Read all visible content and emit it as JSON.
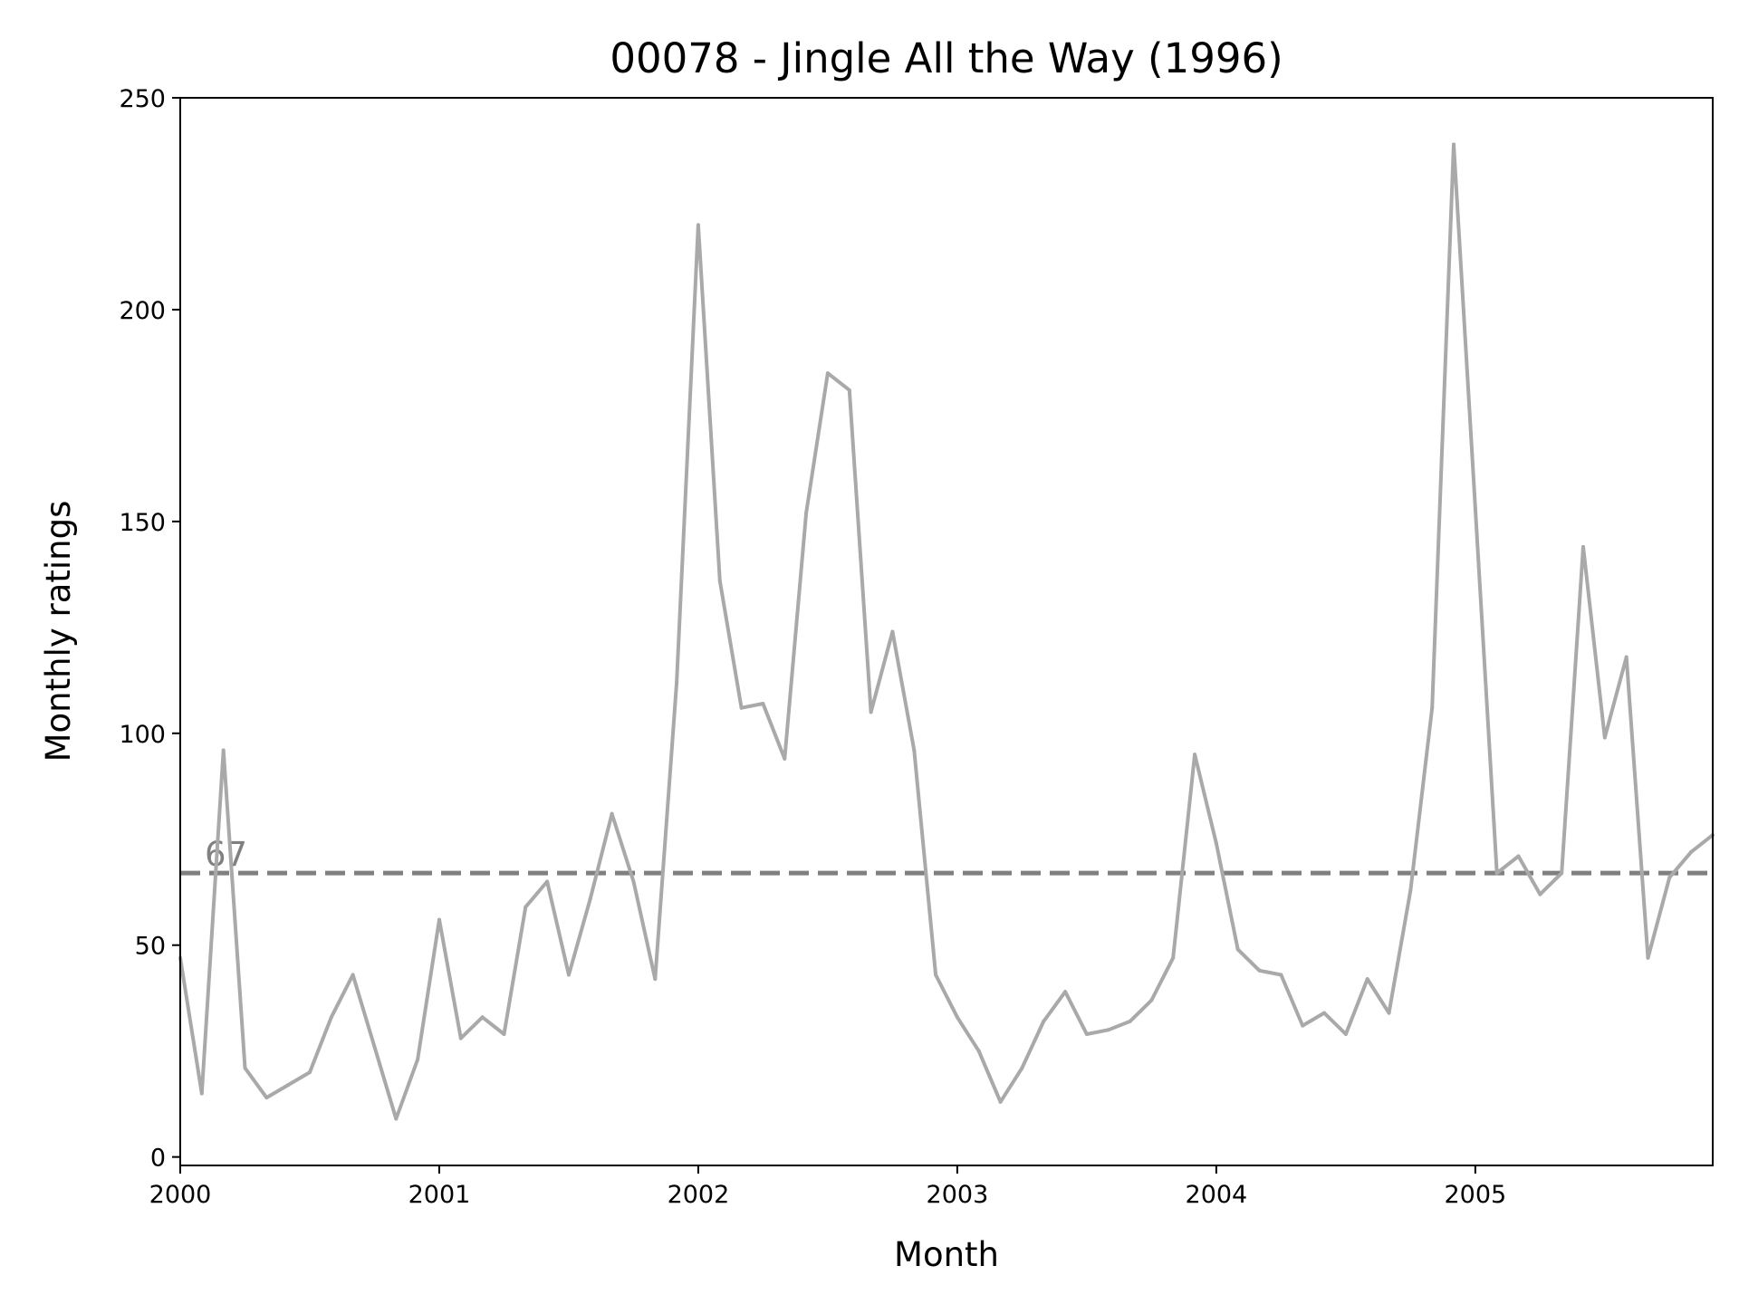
{
  "chart_data": {
    "type": "line",
    "title": "00078 - Jingle All the Way (1996)",
    "xlabel": "Month",
    "ylabel": "Monthly ratings",
    "x_tick_labels": [
      "2000",
      "2001",
      "2002",
      "2003",
      "2004",
      "2005"
    ],
    "y_ticks": [
      0,
      50,
      100,
      150,
      200,
      250
    ],
    "xlim": [
      "2000-01",
      "2005-12"
    ],
    "ylim": [
      -2,
      250
    ],
    "grid": false,
    "legend": "none",
    "series": [
      {
        "color": "#a9a9a9",
        "x": [
          "2000-01",
          "2000-02",
          "2000-03",
          "2000-04",
          "2000-05",
          "2000-06",
          "2000-07",
          "2000-08",
          "2000-09",
          "2000-10",
          "2000-11",
          "2000-12",
          "2001-01",
          "2001-02",
          "2001-03",
          "2001-04",
          "2001-05",
          "2001-06",
          "2001-07",
          "2001-08",
          "2001-09",
          "2001-10",
          "2001-11",
          "2001-12",
          "2002-01",
          "2002-02",
          "2002-03",
          "2002-04",
          "2002-05",
          "2002-06",
          "2002-07",
          "2002-08",
          "2002-09",
          "2002-10",
          "2002-11",
          "2002-12",
          "2003-01",
          "2003-02",
          "2003-03",
          "2003-04",
          "2003-05",
          "2003-06",
          "2003-07",
          "2003-08",
          "2003-09",
          "2003-10",
          "2003-11",
          "2003-12",
          "2004-01",
          "2004-02",
          "2004-03",
          "2004-04",
          "2004-05",
          "2004-06",
          "2004-07",
          "2004-08",
          "2004-09",
          "2004-10",
          "2004-11",
          "2004-12",
          "2005-01",
          "2005-02",
          "2005-03",
          "2005-04",
          "2005-05",
          "2005-06",
          "2005-07",
          "2005-08",
          "2005-09",
          "2005-10",
          "2005-11",
          "2005-12"
        ],
        "values": [
          47,
          15,
          96,
          21,
          14,
          17,
          20,
          33,
          43,
          26,
          9,
          23,
          56,
          28,
          33,
          29,
          59,
          65,
          43,
          61,
          81,
          65,
          42,
          112,
          220,
          136,
          106,
          107,
          94,
          152,
          185,
          181,
          105,
          124,
          96,
          43,
          33,
          25,
          13,
          21,
          32,
          39,
          29,
          30,
          32,
          37,
          47,
          95,
          74,
          49,
          44,
          43,
          31,
          34,
          29,
          42,
          34,
          63,
          106,
          239,
          153,
          67,
          71,
          62,
          67,
          144,
          99,
          118,
          47,
          66,
          72,
          76
        ]
      }
    ],
    "reference_line": {
      "value": 67,
      "label": "67",
      "color": "#808080",
      "style": "dashed"
    }
  }
}
